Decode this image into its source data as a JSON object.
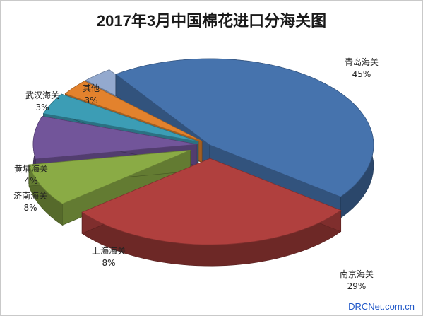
{
  "chart_data": {
    "type": "pie",
    "title": "2017年3月中国棉花进口分海关图",
    "slices": [
      {
        "name": "青岛海关",
        "value": 45,
        "label": "45%",
        "color": "#4673ad"
      },
      {
        "name": "南京海关",
        "value": 29,
        "label": "29%",
        "color": "#b0403e"
      },
      {
        "name": "上海海关",
        "value": 8,
        "label": "8%",
        "color": "#8aab45"
      },
      {
        "name": "济南海关",
        "value": 8,
        "label": "8%",
        "color": "#72559a"
      },
      {
        "name": "黄埔海关",
        "value": 4,
        "label": "4%",
        "color": "#3c9db5"
      },
      {
        "name": "武汉海关",
        "value": 3,
        "label": "3%",
        "color": "#e3822d"
      },
      {
        "name": "其他",
        "value": 3,
        "label": "3%",
        "color": "#93a9ce"
      }
    ],
    "style": "3d-exploded",
    "legend": "none"
  },
  "watermark": "DRCNet.com.cn"
}
